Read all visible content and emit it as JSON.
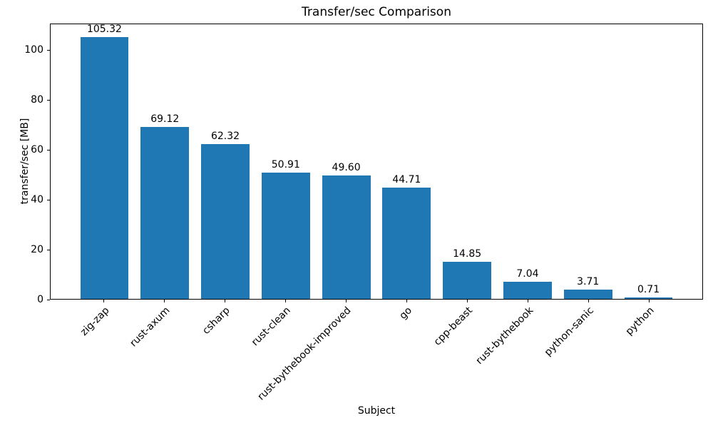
{
  "chart_data": {
    "type": "bar",
    "title": "Transfer/sec Comparison",
    "xlabel": "Subject",
    "ylabel": "transfer/sec [MB]",
    "categories": [
      "zig-zap",
      "rust-axum",
      "csharp",
      "rust-clean",
      "rust-bythebook-improved",
      "go",
      "cpp-beast",
      "rust-bythebook",
      "python-sanic",
      "python"
    ],
    "values": [
      105.32,
      69.12,
      62.32,
      50.91,
      49.6,
      44.71,
      14.85,
      7.04,
      3.71,
      0.71
    ],
    "value_labels": [
      "105.32",
      "69.12",
      "62.32",
      "50.91",
      "49.60",
      "44.71",
      "14.85",
      "7.04",
      "3.71",
      "0.71"
    ],
    "yticks": [
      0,
      20,
      40,
      60,
      80,
      100
    ],
    "ytick_labels": [
      "0",
      "20",
      "40",
      "60",
      "80",
      "100"
    ],
    "ylim": [
      0,
      110.6
    ],
    "bar_color": "#1f77b4",
    "grid": false,
    "legend": null,
    "bar_width_fraction": 0.8
  }
}
